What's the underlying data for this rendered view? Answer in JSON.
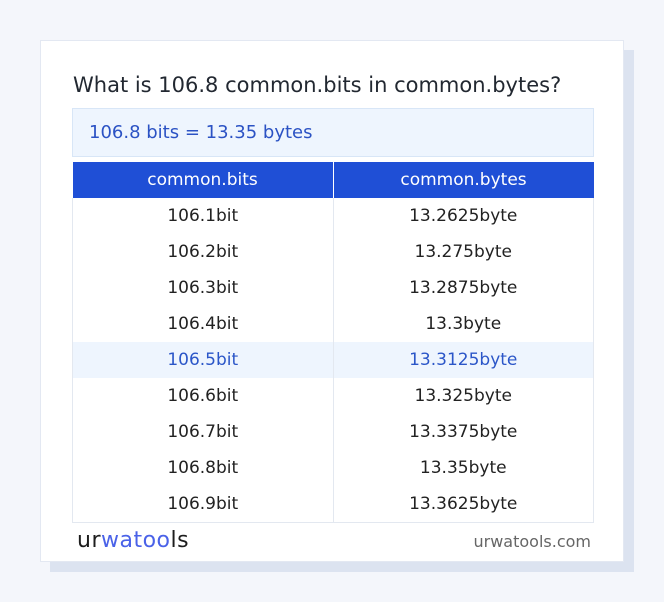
{
  "title": "What is 106.8 common.bits in common.bytes?",
  "result": "106.8 bits = 13.35 bytes",
  "table": {
    "headers": [
      "common.bits",
      "common.bytes"
    ],
    "rows": [
      [
        "106.1bit",
        "13.2625byte"
      ],
      [
        "106.2bit",
        "13.275byte"
      ],
      [
        "106.3bit",
        "13.2875byte"
      ],
      [
        "106.4bit",
        "13.3byte"
      ],
      [
        "106.5bit",
        "13.3125byte"
      ],
      [
        "106.6bit",
        "13.325byte"
      ],
      [
        "106.7bit",
        "13.3375byte"
      ],
      [
        "106.8bit",
        "13.35byte"
      ],
      [
        "106.9bit",
        "13.3625byte"
      ]
    ],
    "highlighted_row": 4
  },
  "footer": {
    "logo": {
      "p1": "ur",
      "p2": "watoo",
      "p3": "ls"
    },
    "site": "urwatools.com"
  },
  "colors": {
    "accent": "#1f4fd6",
    "highlight_bg": "#eef5fe"
  }
}
